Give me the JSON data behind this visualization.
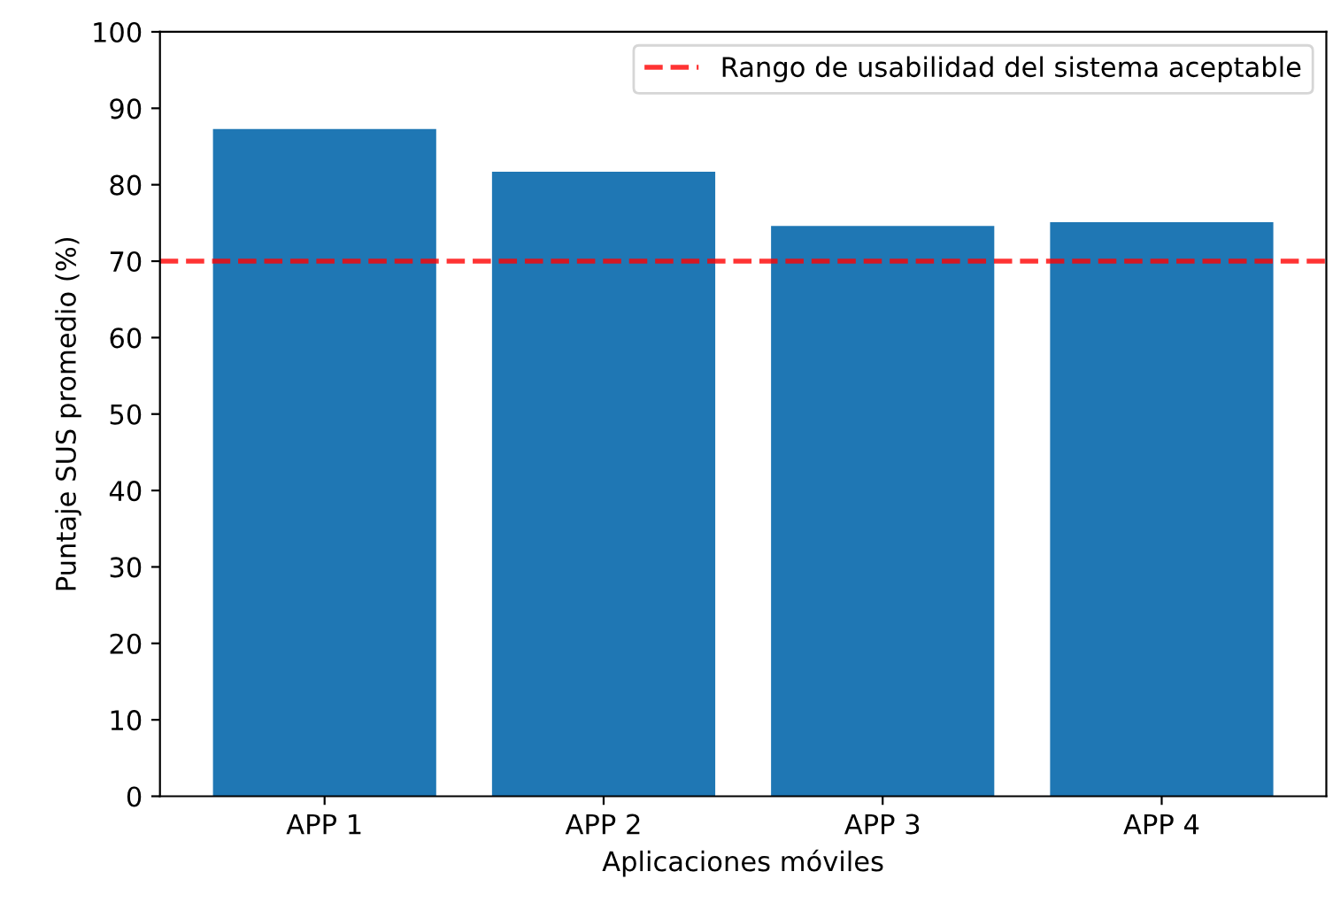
{
  "chart_data": {
    "type": "bar",
    "xlabel": "Aplicaciones móviles",
    "ylabel": "Puntaje SUS promedio (%)",
    "categories": [
      "APP 1",
      "APP 2",
      "APP 3",
      "APP 4"
    ],
    "values": [
      87.3,
      81.7,
      74.6,
      75.1
    ],
    "color": "#1f77b4",
    "ylim": [
      0,
      100
    ],
    "yticks": [
      0,
      10,
      20,
      30,
      40,
      50,
      60,
      70,
      80,
      90,
      100
    ],
    "ref_lines": [
      {
        "axis": "y",
        "value": 70,
        "label": "Rango de usabilidad del sistema aceptable",
        "color": "#ff0000",
        "line_style": "dashed"
      }
    ],
    "legend": "top right",
    "grid": false
  }
}
